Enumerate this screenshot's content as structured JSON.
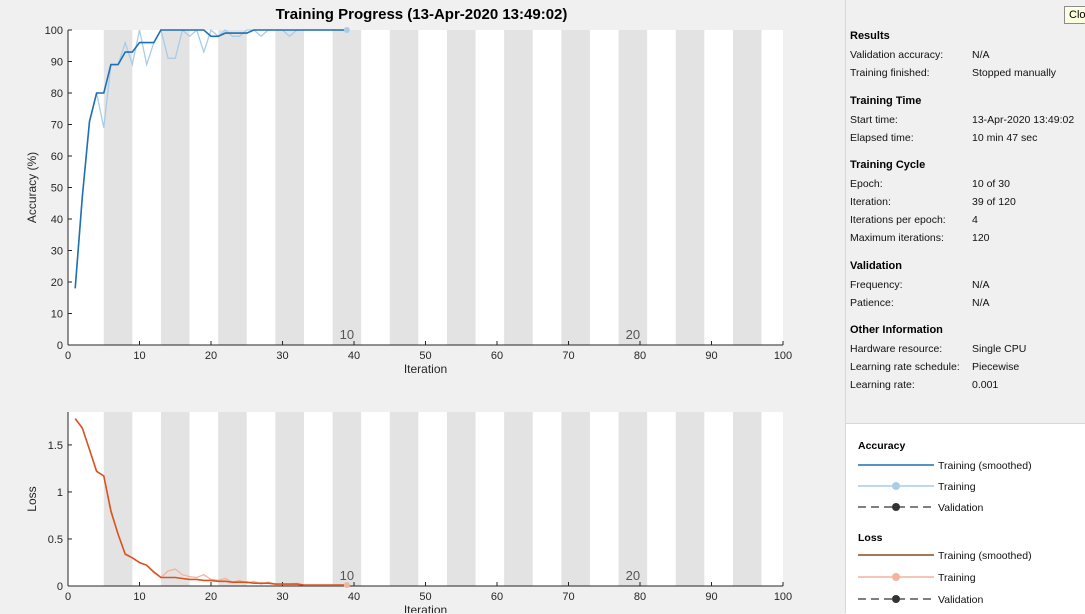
{
  "title": "Training Progress (13-Apr-2020 13:49:02)",
  "close_label": "Close",
  "colors": {
    "acc_smooth": "#1f6fb4",
    "acc_raw": "#a9cce8",
    "loss_smooth": "#d9531e",
    "loss_raw": "#f2b49b",
    "band": "#e3e3e3"
  },
  "panel": {
    "results_title": "Results",
    "validation_accuracy_label": "Validation accuracy:",
    "validation_accuracy_value": "N/A",
    "training_finished_label": "Training finished:",
    "training_finished_value": "Stopped manually",
    "time_title": "Training Time",
    "start_time_label": "Start time:",
    "start_time_value": "13-Apr-2020 13:49:02",
    "elapsed_label": "Elapsed time:",
    "elapsed_value": "10 min 47 sec",
    "cycle_title": "Training Cycle",
    "epoch_label": "Epoch:",
    "epoch_value": "10 of 30",
    "iteration_label": "Iteration:",
    "iteration_value": "39 of 120",
    "ipe_label": "Iterations per epoch:",
    "ipe_value": "4",
    "max_iter_label": "Maximum iterations:",
    "max_iter_value": "120",
    "validation_title": "Validation",
    "frequency_label": "Frequency:",
    "frequency_value": "N/A",
    "patience_label": "Patience:",
    "patience_value": "N/A",
    "other_title": "Other Information",
    "hardware_label": "Hardware resource:",
    "hardware_value": "Single CPU",
    "lr_schedule_label": "Learning rate schedule:",
    "lr_schedule_value": "Piecewise",
    "lr_label": "Learning rate:",
    "lr_value": "0.001"
  },
  "legend": {
    "accuracy_title": "Accuracy",
    "loss_title": "Loss",
    "smoothed": "Training (smoothed)",
    "training": "Training",
    "validation": "Validation"
  },
  "chart_data": [
    {
      "type": "line",
      "xlabel": "Iteration",
      "ylabel": "Accuracy (%)",
      "xlim": [
        0,
        100
      ],
      "ylim": [
        0,
        100
      ],
      "xticks": [
        0,
        10,
        20,
        30,
        40,
        50,
        60,
        70,
        80,
        90,
        100
      ],
      "yticks": [
        0,
        10,
        20,
        30,
        40,
        50,
        60,
        70,
        80,
        90,
        100
      ],
      "epoch_bands": [
        [
          5,
          9
        ],
        [
          13,
          17
        ],
        [
          21,
          25
        ],
        [
          29,
          33
        ],
        [
          37,
          41
        ],
        [
          45,
          49
        ],
        [
          53,
          57
        ],
        [
          61,
          65
        ],
        [
          69,
          73
        ],
        [
          77,
          81
        ],
        [
          85,
          89
        ],
        [
          93,
          97
        ]
      ],
      "epoch_labels": [
        {
          "x": 39,
          "text": "10"
        },
        {
          "x": 79,
          "text": "20"
        }
      ],
      "series": [
        {
          "name": "Training (smoothed)",
          "x": [
            1,
            2,
            3,
            4,
            5,
            6,
            7,
            8,
            9,
            10,
            11,
            12,
            13,
            14,
            15,
            16,
            17,
            18,
            19,
            20,
            21,
            22,
            23,
            24,
            25,
            26,
            27,
            28,
            29,
            30,
            31,
            32,
            33,
            34,
            35,
            36,
            37,
            38,
            39
          ],
          "values": [
            18,
            47,
            71,
            80,
            80,
            89,
            89,
            93,
            93,
            96,
            96,
            96,
            100,
            100,
            100,
            100,
            100,
            100,
            100,
            98,
            98,
            99,
            99,
            99,
            99,
            100,
            100,
            100,
            100,
            100,
            100,
            100,
            100,
            100,
            100,
            100,
            100,
            100,
            100
          ]
        },
        {
          "name": "Training",
          "x": [
            1,
            2,
            3,
            4,
            5,
            6,
            7,
            8,
            9,
            10,
            11,
            12,
            13,
            14,
            15,
            16,
            17,
            18,
            19,
            20,
            21,
            22,
            23,
            24,
            25,
            26,
            27,
            28,
            29,
            30,
            31,
            32,
            33,
            34,
            35,
            36,
            37,
            38,
            39
          ],
          "values": [
            18,
            47,
            71,
            80,
            69,
            89,
            89,
            96,
            89,
            100,
            89,
            96,
            100,
            91,
            91,
            100,
            98,
            100,
            93,
            100,
            98,
            100,
            98,
            98,
            100,
            100,
            98,
            100,
            100,
            100,
            98,
            100,
            100,
            100,
            100,
            100,
            100,
            100,
            100
          ]
        }
      ]
    },
    {
      "type": "line",
      "xlabel": "Iteration",
      "ylabel": "Loss",
      "xlim": [
        0,
        100
      ],
      "ylim": [
        0,
        1.85
      ],
      "xticks": [
        0,
        10,
        20,
        30,
        40,
        50,
        60,
        70,
        80,
        90,
        100
      ],
      "yticks": [
        0,
        0.5,
        1,
        1.5
      ],
      "epoch_bands": [
        [
          5,
          9
        ],
        [
          13,
          17
        ],
        [
          21,
          25
        ],
        [
          29,
          33
        ],
        [
          37,
          41
        ],
        [
          45,
          49
        ],
        [
          53,
          57
        ],
        [
          61,
          65
        ],
        [
          69,
          73
        ],
        [
          77,
          81
        ],
        [
          85,
          89
        ],
        [
          93,
          97
        ]
      ],
      "epoch_labels": [
        {
          "x": 39,
          "text": "10"
        },
        {
          "x": 79,
          "text": "20"
        }
      ],
      "series": [
        {
          "name": "Training (smoothed)",
          "x": [
            1,
            2,
            3,
            4,
            5,
            6,
            7,
            8,
            9,
            10,
            11,
            12,
            13,
            14,
            15,
            16,
            17,
            18,
            19,
            20,
            21,
            22,
            23,
            24,
            25,
            26,
            27,
            28,
            29,
            30,
            31,
            32,
            33,
            34,
            35,
            36,
            37,
            38,
            39
          ],
          "values": [
            1.78,
            1.68,
            1.45,
            1.22,
            1.17,
            0.8,
            0.55,
            0.34,
            0.3,
            0.25,
            0.22,
            0.15,
            0.09,
            0.09,
            0.09,
            0.08,
            0.07,
            0.07,
            0.06,
            0.06,
            0.05,
            0.05,
            0.04,
            0.04,
            0.04,
            0.03,
            0.03,
            0.03,
            0.02,
            0.02,
            0.02,
            0.02,
            0.01,
            0.01,
            0.01,
            0.01,
            0.01,
            0.01,
            0.01
          ]
        },
        {
          "name": "Training",
          "x": [
            1,
            2,
            3,
            4,
            5,
            6,
            7,
            8,
            9,
            10,
            11,
            12,
            13,
            14,
            15,
            16,
            17,
            18,
            19,
            20,
            21,
            22,
            23,
            24,
            25,
            26,
            27,
            28,
            29,
            30,
            31,
            32,
            33,
            34,
            35,
            36,
            37,
            38,
            39
          ],
          "values": [
            1.78,
            1.68,
            1.45,
            1.22,
            1.17,
            0.78,
            0.55,
            0.33,
            0.3,
            0.25,
            0.22,
            0.14,
            0.09,
            0.16,
            0.18,
            0.12,
            0.1,
            0.09,
            0.12,
            0.07,
            0.06,
            0.08,
            0.04,
            0.06,
            0.03,
            0.05,
            0.02,
            0.04,
            0.02,
            0.02,
            0.02,
            0.03,
            0.01,
            0.01,
            0.01,
            0.01,
            0.01,
            0.01,
            0.01
          ]
        }
      ]
    }
  ]
}
